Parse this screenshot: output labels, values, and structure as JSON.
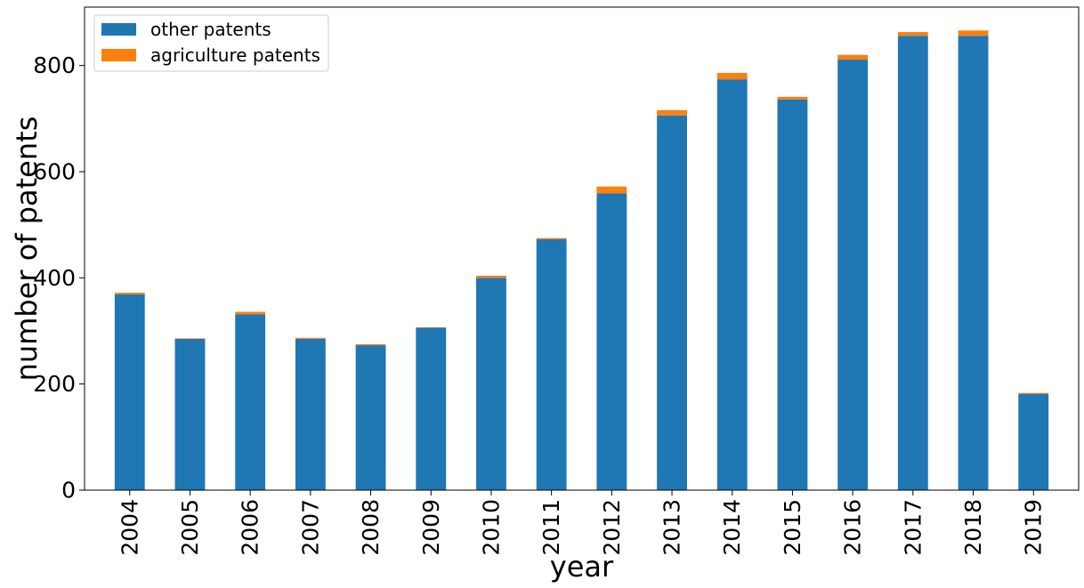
{
  "chart_data": {
    "type": "bar",
    "stacked": true,
    "title": "",
    "xlabel": "year",
    "ylabel": "number of patents",
    "categories": [
      "2004",
      "2005",
      "2006",
      "2007",
      "2008",
      "2009",
      "2010",
      "2011",
      "2012",
      "2013",
      "2014",
      "2015",
      "2016",
      "2017",
      "2018",
      "2019"
    ],
    "series": [
      {
        "name": "other patents",
        "color": "#1f77b4",
        "values": [
          369,
          285,
          331,
          285,
          273,
          306,
          400,
          473,
          559,
          706,
          774,
          736,
          811,
          856,
          856,
          181
        ]
      },
      {
        "name": "agriculture patents",
        "color": "#ff7f0e",
        "values": [
          3,
          1,
          5,
          2,
          2,
          1,
          4,
          2,
          13,
          10,
          12,
          5,
          9,
          7,
          10,
          2
        ]
      }
    ],
    "ylim": [
      0,
      910
    ],
    "yticks": [
      0,
      200,
      400,
      600,
      800
    ],
    "grid": false,
    "legend_position": "top-left"
  }
}
